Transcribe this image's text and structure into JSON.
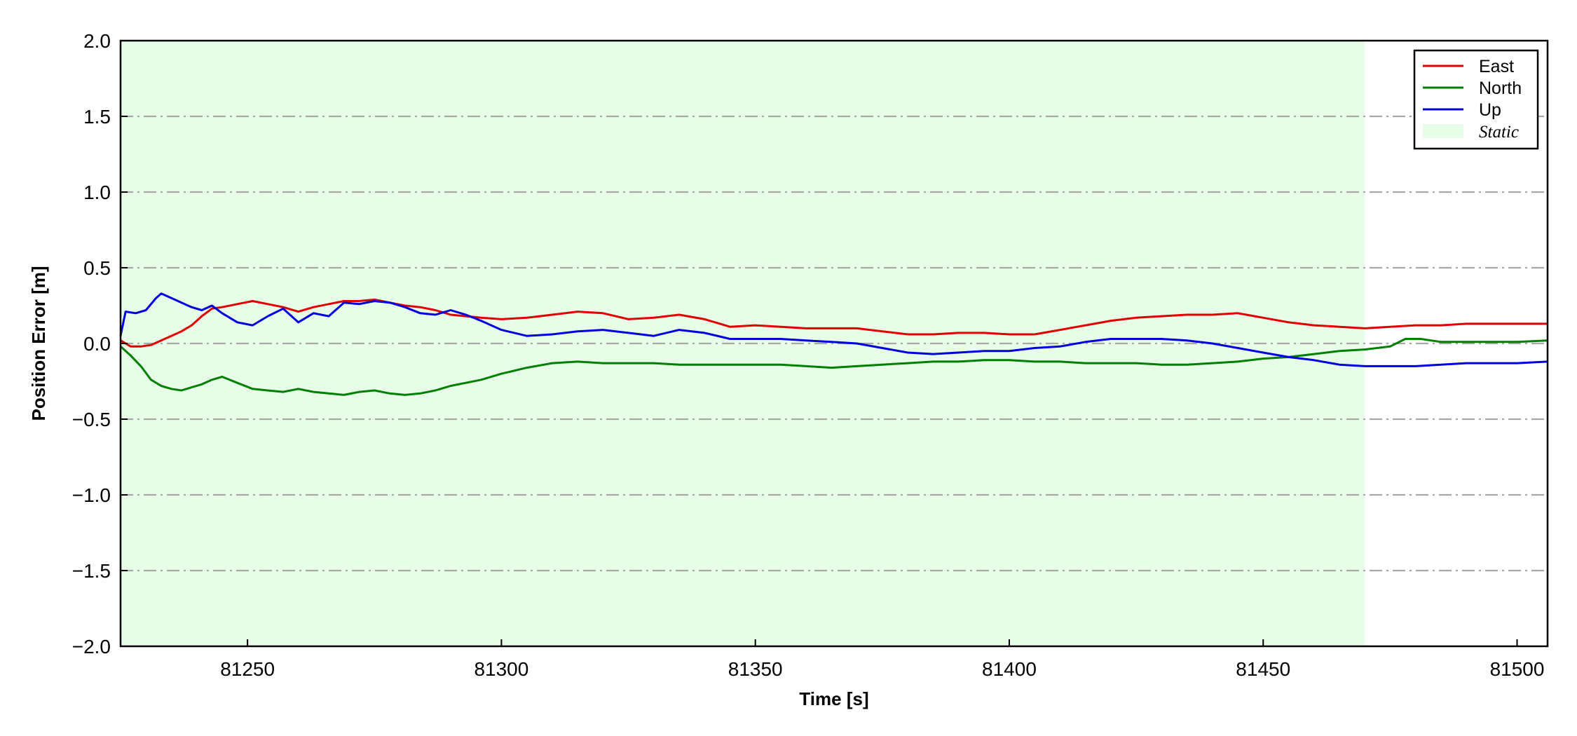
{
  "chart_data": {
    "type": "line",
    "title": "",
    "xlabel": "Time [s]",
    "ylabel": "Position Error [m]",
    "xlim": [
      81225,
      81506
    ],
    "ylim": [
      -2.0,
      2.0
    ],
    "xticks": [
      81250,
      81300,
      81350,
      81400,
      81450,
      81500
    ],
    "xtick_labels": [
      "81250",
      "81300",
      "81350",
      "81400",
      "81450",
      "81500"
    ],
    "yticks": [
      2.0,
      1.5,
      1.0,
      0.5,
      0.0,
      -0.5,
      -1.0,
      -1.5,
      -2.0
    ],
    "ytick_labels": [
      "2.0",
      "1.5",
      "1.0",
      "0.5",
      "0.0",
      "−0.5",
      "−1.0",
      "−1.5",
      "−2.0"
    ],
    "grid": "horizontal dash-dot",
    "legend_position": "top-right",
    "static_region": {
      "label": "Static",
      "x_start": 81225,
      "x_end": 81470,
      "color": "#e8fde8"
    },
    "series": [
      {
        "name": "East",
        "color": "#e00000",
        "x": [
          81225,
          81227,
          81229,
          81231,
          81233,
          81235,
          81237,
          81239,
          81241,
          81243,
          81245,
          81248,
          81251,
          81254,
          81257,
          81260,
          81263,
          81266,
          81269,
          81272,
          81275,
          81278,
          81281,
          81284,
          81287,
          81290,
          81293,
          81296,
          81300,
          81305,
          81310,
          81315,
          81320,
          81325,
          81330,
          81335,
          81340,
          81345,
          81350,
          81355,
          81360,
          81365,
          81370,
          81375,
          81380,
          81385,
          81390,
          81395,
          81400,
          81405,
          81410,
          81415,
          81420,
          81425,
          81430,
          81435,
          81440,
          81445,
          81450,
          81455,
          81460,
          81465,
          81470,
          81475,
          81480,
          81485,
          81490,
          81495,
          81500,
          81506
        ],
        "y": [
          0.02,
          -0.02,
          -0.02,
          -0.01,
          0.02,
          0.05,
          0.08,
          0.12,
          0.18,
          0.23,
          0.24,
          0.26,
          0.28,
          0.26,
          0.24,
          0.21,
          0.24,
          0.26,
          0.28,
          0.28,
          0.29,
          0.27,
          0.25,
          0.24,
          0.22,
          0.19,
          0.18,
          0.17,
          0.16,
          0.17,
          0.19,
          0.21,
          0.2,
          0.16,
          0.17,
          0.19,
          0.16,
          0.11,
          0.12,
          0.11,
          0.1,
          0.1,
          0.1,
          0.08,
          0.06,
          0.06,
          0.07,
          0.07,
          0.06,
          0.06,
          0.09,
          0.12,
          0.15,
          0.17,
          0.18,
          0.19,
          0.19,
          0.2,
          0.17,
          0.14,
          0.12,
          0.11,
          0.1,
          0.11,
          0.12,
          0.12,
          0.13,
          0.13,
          0.13,
          0.13
        ]
      },
      {
        "name": "North",
        "color": "#008000",
        "x": [
          81225,
          81227,
          81229,
          81231,
          81233,
          81235,
          81237,
          81239,
          81241,
          81243,
          81245,
          81248,
          81251,
          81254,
          81257,
          81260,
          81263,
          81266,
          81269,
          81272,
          81275,
          81278,
          81281,
          81284,
          81287,
          81290,
          81293,
          81296,
          81300,
          81305,
          81310,
          81315,
          81320,
          81325,
          81330,
          81335,
          81340,
          81345,
          81350,
          81355,
          81360,
          81365,
          81370,
          81375,
          81380,
          81385,
          81390,
          81395,
          81400,
          81405,
          81410,
          81415,
          81420,
          81425,
          81430,
          81435,
          81440,
          81445,
          81450,
          81455,
          81460,
          81465,
          81470,
          81475,
          81478,
          81481,
          81485,
          81490,
          81495,
          81500,
          81506
        ],
        "y": [
          -0.02,
          -0.08,
          -0.15,
          -0.24,
          -0.28,
          -0.3,
          -0.31,
          -0.29,
          -0.27,
          -0.24,
          -0.22,
          -0.26,
          -0.3,
          -0.31,
          -0.32,
          -0.3,
          -0.32,
          -0.33,
          -0.34,
          -0.32,
          -0.31,
          -0.33,
          -0.34,
          -0.33,
          -0.31,
          -0.28,
          -0.26,
          -0.24,
          -0.2,
          -0.16,
          -0.13,
          -0.12,
          -0.13,
          -0.13,
          -0.13,
          -0.14,
          -0.14,
          -0.14,
          -0.14,
          -0.14,
          -0.15,
          -0.16,
          -0.15,
          -0.14,
          -0.13,
          -0.12,
          -0.12,
          -0.11,
          -0.11,
          -0.12,
          -0.12,
          -0.13,
          -0.13,
          -0.13,
          -0.14,
          -0.14,
          -0.13,
          -0.12,
          -0.1,
          -0.09,
          -0.07,
          -0.05,
          -0.04,
          -0.02,
          0.03,
          0.03,
          0.01,
          0.01,
          0.01,
          0.01,
          0.02
        ]
      },
      {
        "name": "Up",
        "color": "#0000dd",
        "x": [
          81225,
          81226,
          81228,
          81230,
          81232,
          81233,
          81235,
          81237,
          81239,
          81241,
          81243,
          81245,
          81248,
          81251,
          81254,
          81257,
          81260,
          81263,
          81266,
          81269,
          81272,
          81275,
          81278,
          81281,
          81284,
          81287,
          81290,
          81293,
          81296,
          81300,
          81305,
          81310,
          81315,
          81320,
          81325,
          81330,
          81335,
          81340,
          81345,
          81350,
          81355,
          81360,
          81365,
          81370,
          81375,
          81380,
          81385,
          81390,
          81395,
          81400,
          81405,
          81410,
          81415,
          81420,
          81425,
          81430,
          81435,
          81440,
          81445,
          81450,
          81455,
          81460,
          81465,
          81470,
          81475,
          81480,
          81485,
          81490,
          81495,
          81500,
          81506
        ],
        "y": [
          0.05,
          0.21,
          0.2,
          0.22,
          0.3,
          0.33,
          0.3,
          0.27,
          0.24,
          0.22,
          0.25,
          0.2,
          0.14,
          0.12,
          0.18,
          0.23,
          0.14,
          0.2,
          0.18,
          0.27,
          0.26,
          0.28,
          0.27,
          0.24,
          0.2,
          0.19,
          0.22,
          0.19,
          0.15,
          0.09,
          0.05,
          0.06,
          0.08,
          0.09,
          0.07,
          0.05,
          0.09,
          0.07,
          0.03,
          0.03,
          0.03,
          0.02,
          0.01,
          0.0,
          -0.03,
          -0.06,
          -0.07,
          -0.06,
          -0.05,
          -0.05,
          -0.03,
          -0.02,
          0.01,
          0.03,
          0.03,
          0.03,
          0.02,
          0.0,
          -0.03,
          -0.06,
          -0.09,
          -0.11,
          -0.14,
          -0.15,
          -0.15,
          -0.15,
          -0.14,
          -0.13,
          -0.13,
          -0.13,
          -0.12
        ]
      }
    ]
  }
}
